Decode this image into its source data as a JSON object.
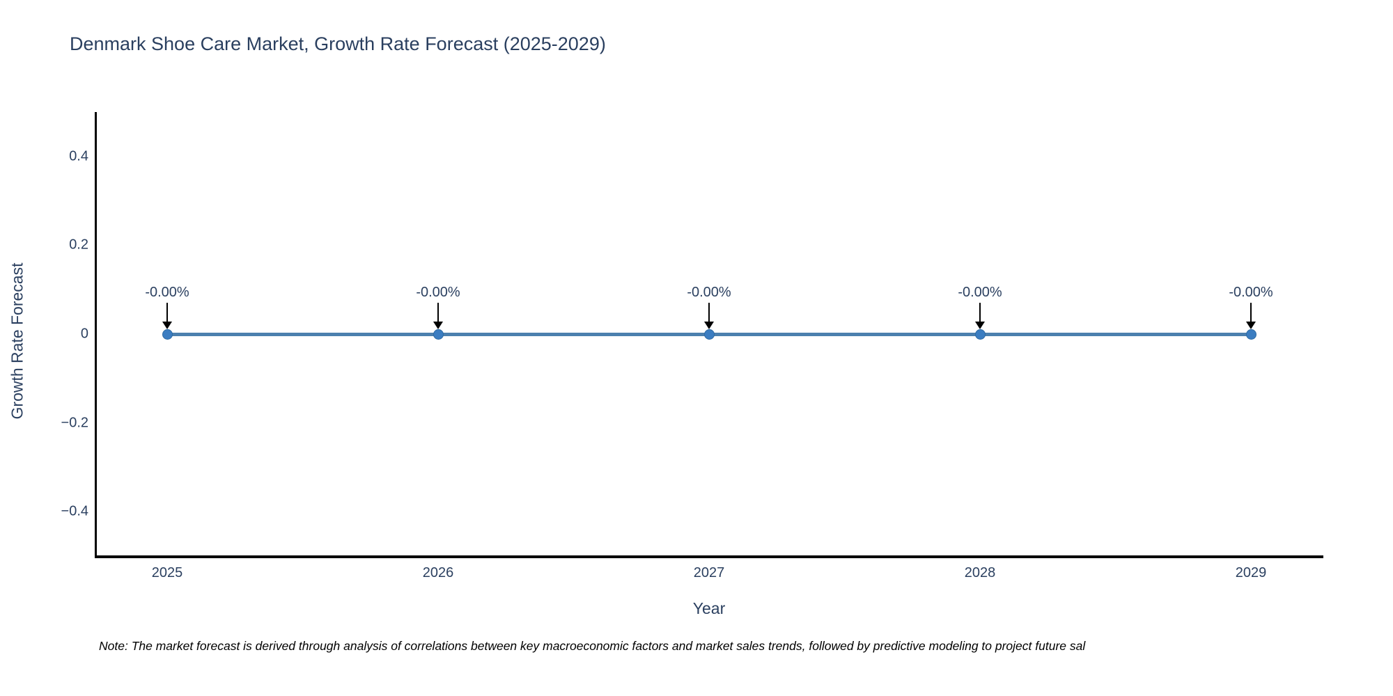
{
  "title": "Denmark Shoe Care Market, Growth Rate Forecast (2025-2029)",
  "note": "Note: The market forecast is derived through analysis of correlations between key macroeconomic factors and market sales trends, followed by predictive modeling to project future sal",
  "chart_data": {
    "type": "line",
    "title": "Denmark Shoe Care Market, Growth Rate Forecast (2025-2029)",
    "xlabel": "Year",
    "ylabel": "Growth Rate Forecast",
    "x": [
      2025,
      2026,
      2027,
      2028,
      2029
    ],
    "series": [
      {
        "name": "Growth Rate Forecast",
        "values": [
          0,
          0,
          0,
          0,
          0
        ]
      }
    ],
    "point_labels": [
      "-0.00%",
      "-0.00%",
      "-0.00%",
      "-0.00%",
      "-0.00%"
    ],
    "xtick_labels": [
      "2025",
      "2026",
      "2027",
      "2028",
      "2029"
    ],
    "yticks": [
      0.4,
      0.2,
      0,
      -0.2,
      -0.4
    ],
    "ytick_labels": [
      "0.4",
      "0.2",
      "0",
      "−0.2",
      "−0.4"
    ],
    "ylim": [
      -0.5,
      0.5
    ],
    "grid": false,
    "legend": "none",
    "annotation_arrows": true,
    "colors": {
      "line": "#4c80ae",
      "marker": "#3b7dc1",
      "marker_edge": "#2f6ba3",
      "axis": "#000000",
      "text": "#2a3f5f",
      "arrow": "#000000",
      "note_text": "#000000",
      "background": "#ffffff"
    }
  }
}
